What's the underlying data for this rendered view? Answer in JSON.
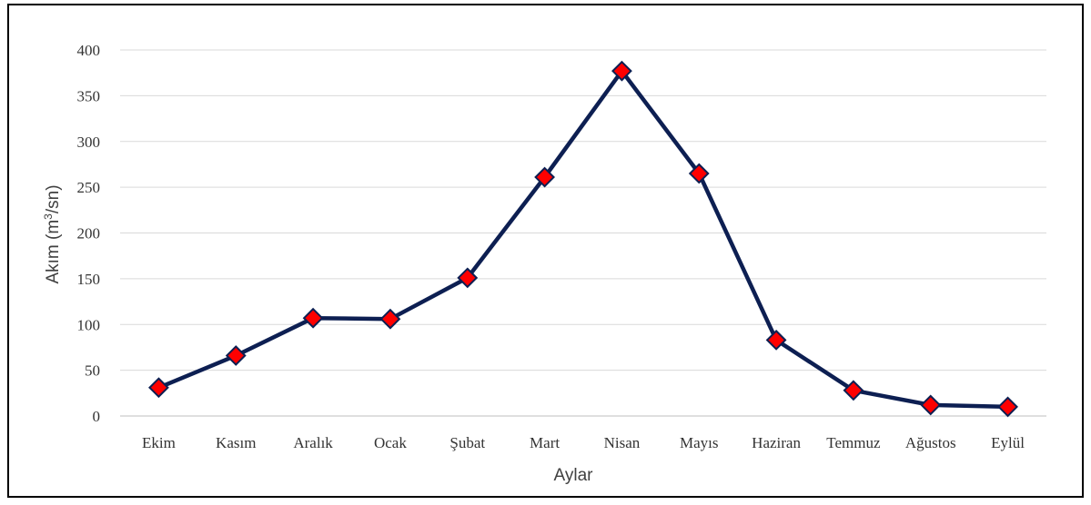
{
  "chart_data": {
    "type": "line",
    "categories": [
      "Ekim",
      "Kasım",
      "Aralık",
      "Ocak",
      "Şubat",
      "Mart",
      "Nisan",
      "Mayıs",
      "Haziran",
      "Temmuz",
      "Ağustos",
      "Eylül"
    ],
    "series": [
      {
        "values": [
          31,
          66,
          107,
          106,
          151,
          261,
          377,
          265,
          83,
          28,
          12,
          10
        ]
      }
    ],
    "xlabel": "Aylar",
    "ylabel_main": "Akım (m",
    "ylabel_sup": "3",
    "ylabel_tail": "/sn)",
    "ylim": [
      0,
      400
    ],
    "yticks": [
      "0",
      "50",
      "100",
      "150",
      "200",
      "250",
      "300",
      "350",
      "400"
    ],
    "grid": true,
    "legend": "none",
    "colors": {
      "line": "#0d1f52",
      "marker_fill": "#ff0000",
      "marker_stroke": "#0d1f52"
    }
  }
}
